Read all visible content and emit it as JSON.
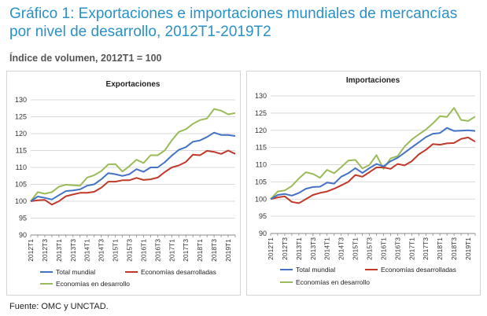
{
  "title": "Gráfico 1: Exportaciones e importaciones mundiales de mercancías por nivel de desarrollo, 2012T1-2019T2",
  "subtitle": "Índice de volumen, 2012T1 = 100",
  "source": "Fuente: OMC y UNCTAD.",
  "colors": {
    "total": "#4472c4",
    "developed": "#c0392b",
    "developing": "#9bbb59",
    "grid": "#d9d9d9",
    "axis": "#888888"
  },
  "chart_data": [
    {
      "type": "line",
      "title": "Exportaciones",
      "ylim": [
        90,
        130
      ],
      "yticks": [
        90,
        95,
        100,
        105,
        110,
        115,
        120,
        125,
        130
      ],
      "x": [
        "2012T1",
        "2012T2",
        "2012T3",
        "2012T4",
        "2013T1",
        "2013T2",
        "2013T3",
        "2013T4",
        "2014T1",
        "2014T2",
        "2014T3",
        "2014T4",
        "2015T1",
        "2015T2",
        "2015T3",
        "2015T4",
        "2016T1",
        "2016T2",
        "2016T3",
        "2016T4",
        "2017T1",
        "2017T2",
        "2017T3",
        "2017T4",
        "2018T1",
        "2018T2",
        "2018T3",
        "2018T4",
        "2019T1",
        "2019T2"
      ],
      "xticklabels": [
        "2012T1",
        "2012T3",
        "2013T1",
        "2013T3",
        "2014T1",
        "2014T3",
        "2015T1",
        "2015T3",
        "2016T1",
        "2016T3",
        "2017T1",
        "2017T3",
        "2018T1",
        "2018T3",
        "2019T1"
      ],
      "series": [
        {
          "name": "Total mundial",
          "color_key": "total",
          "values": [
            100,
            101.4,
            101.0,
            100.5,
            101.8,
            103.0,
            103.2,
            103.5,
            104.6,
            105.0,
            106.5,
            108.3,
            108.0,
            107.5,
            108.0,
            109.5,
            108.7,
            110.0,
            110.0,
            111.5,
            113.5,
            115.2,
            116.0,
            117.6,
            118.0,
            119.0,
            120.3,
            119.6,
            119.6,
            119.3
          ]
        },
        {
          "name": "Economías desarrolladas",
          "color_key": "developed",
          "values": [
            100,
            100.3,
            100.4,
            99.0,
            100.0,
            101.5,
            102.0,
            102.5,
            102.5,
            102.8,
            104.0,
            105.8,
            105.8,
            106.2,
            106.2,
            106.9,
            106.3,
            106.5,
            107.0,
            108.6,
            110.0,
            110.6,
            111.6,
            113.8,
            113.6,
            114.9,
            114.6,
            114.0,
            115.0,
            114.0
          ]
        },
        {
          "name": "Economías en desarrollo",
          "color_key": "developing",
          "values": [
            100,
            102.7,
            102.2,
            102.7,
            104.3,
            104.9,
            104.7,
            104.6,
            107.0,
            107.7,
            108.9,
            110.9,
            111.0,
            108.8,
            110.4,
            112.3,
            111.3,
            113.6,
            113.6,
            115.0,
            118.0,
            120.5,
            121.3,
            122.9,
            124.0,
            124.5,
            127.3,
            126.8,
            125.7,
            126.1
          ]
        }
      ],
      "legend": "bottom"
    },
    {
      "type": "line",
      "title": "Importaciones",
      "ylim": [
        90,
        130
      ],
      "yticks": [
        90,
        95,
        100,
        105,
        110,
        115,
        120,
        125,
        130
      ],
      "x": [
        "2012T1",
        "2012T2",
        "2012T3",
        "2012T4",
        "2013T1",
        "2013T2",
        "2013T3",
        "2013T4",
        "2014T1",
        "2014T2",
        "2014T3",
        "2014T4",
        "2015T1",
        "2015T2",
        "2015T3",
        "2015T4",
        "2016T1",
        "2016T2",
        "2016T3",
        "2016T4",
        "2017T1",
        "2017T2",
        "2017T3",
        "2017T4",
        "2018T1",
        "2018T2",
        "2018T3",
        "2018T4",
        "2019T1",
        "2019T2"
      ],
      "xticklabels": [
        "2012T1",
        "2012T3",
        "2013T1",
        "2013T3",
        "2014T1",
        "2014T3",
        "2015T1",
        "2015T3",
        "2016T1",
        "2016T3",
        "2017T1",
        "2017T3",
        "2018T1",
        "2018T3",
        "2019T1"
      ],
      "series": [
        {
          "name": "Total mundial",
          "color_key": "total",
          "values": [
            100,
            101.2,
            101.5,
            101.0,
            101.8,
            103.0,
            103.5,
            103.6,
            104.8,
            104.5,
            106.5,
            107.5,
            109.0,
            107.6,
            109.0,
            110.2,
            109.5,
            111.0,
            112.0,
            113.5,
            115.0,
            116.5,
            118.0,
            119.0,
            119.2,
            120.7,
            119.8,
            119.9,
            120.0,
            119.8
          ]
        },
        {
          "name": "Economías desarrolladas",
          "color_key": "developed",
          "values": [
            100,
            100.5,
            100.8,
            99.2,
            98.8,
            100.0,
            101.2,
            101.8,
            102.2,
            103.0,
            104.0,
            105.0,
            107.0,
            106.5,
            107.8,
            109.2,
            109.2,
            108.8,
            110.2,
            109.8,
            111.0,
            113.0,
            114.3,
            116.0,
            115.8,
            116.2,
            116.3,
            117.5,
            117.9,
            116.7
          ]
        },
        {
          "name": "Economías en desarrollo",
          "color_key": "developing",
          "values": [
            100,
            102.2,
            102.5,
            103.8,
            106.0,
            107.8,
            107.3,
            106.2,
            108.5,
            107.5,
            109.3,
            111.2,
            111.4,
            108.9,
            109.9,
            112.8,
            108.8,
            111.8,
            112.5,
            115.3,
            117.3,
            118.8,
            120.2,
            122.0,
            124.1,
            123.9,
            126.5,
            123.0,
            122.7,
            124.0
          ]
        }
      ],
      "legend": "bottom"
    }
  ]
}
